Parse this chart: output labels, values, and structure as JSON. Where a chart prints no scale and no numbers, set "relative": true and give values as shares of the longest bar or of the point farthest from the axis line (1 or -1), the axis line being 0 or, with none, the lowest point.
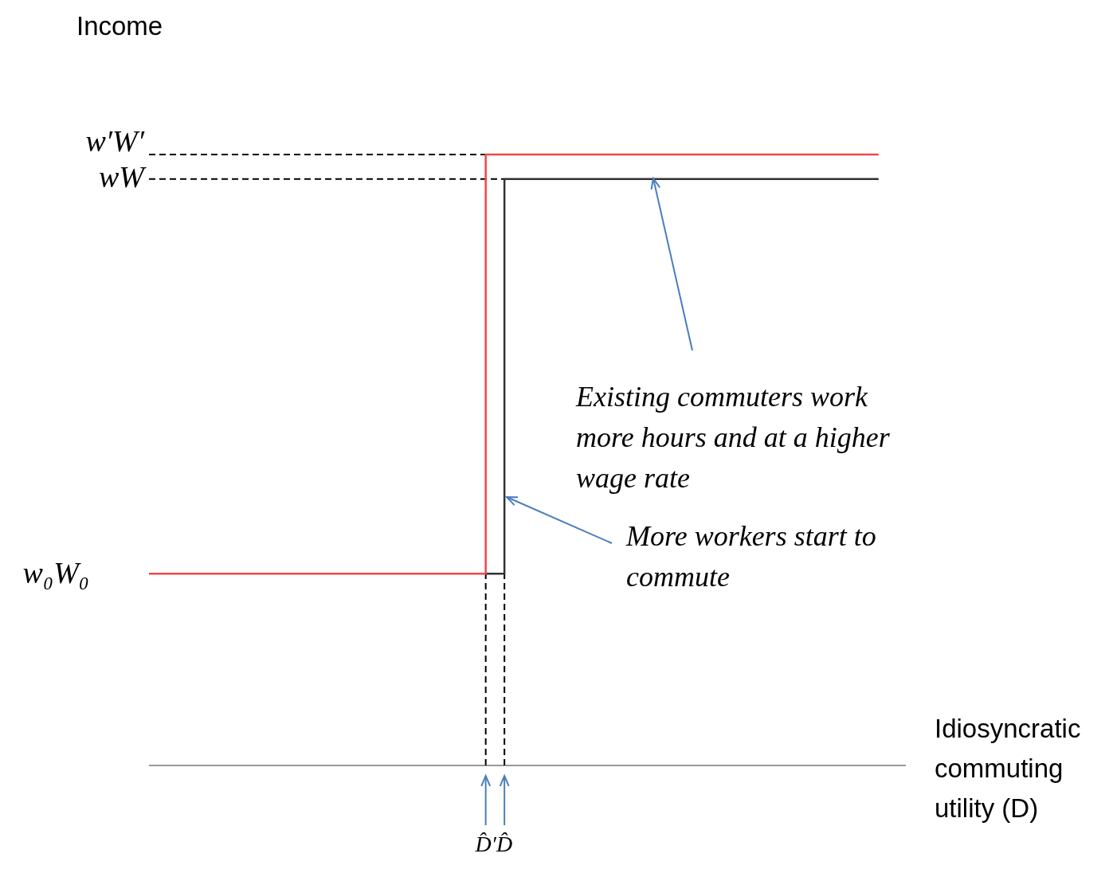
{
  "chart_data": {
    "type": "step",
    "relative": true,
    "ylabel": "Income",
    "xlabel": "Idiosyncratic commuting utility (D)",
    "categories": [
      null,
      null,
      null,
      null,
      null,
      null,
      null,
      null,
      null,
      null,
      null,
      null,
      null,
      null,
      null,
      null,
      null,
      null,
      "D̂′",
      "D̂",
      null,
      null,
      null,
      null,
      null,
      null,
      null,
      null,
      null,
      null,
      null,
      null,
      null,
      null,
      null,
      null,
      null,
      null,
      null,
      null
    ],
    "series": [
      {
        "color": "#f04848",
        "values": [
          0.314,
          0.314,
          0.314,
          0.314,
          0.314,
          0.314,
          0.314,
          0.314,
          0.314,
          0.314,
          0.314,
          0.314,
          0.314,
          0.314,
          0.314,
          0.314,
          0.314,
          0.314,
          1,
          1,
          1,
          1,
          1,
          1,
          1,
          1,
          1,
          1,
          1,
          1,
          1,
          1,
          1,
          1,
          1,
          1,
          1,
          1,
          1,
          1
        ]
      },
      {
        "color": "#333333",
        "values": [
          null,
          null,
          null,
          null,
          null,
          null,
          null,
          null,
          null,
          null,
          null,
          null,
          null,
          null,
          null,
          null,
          null,
          null,
          0.314,
          0.96,
          0.96,
          0.96,
          0.96,
          0.96,
          0.96,
          0.96,
          0.96,
          0.96,
          0.96,
          0.96,
          0.96,
          0.96,
          0.96,
          0.96,
          0.96,
          0.96,
          0.96,
          0.96,
          0.96,
          0.96
        ]
      }
    ],
    "ref_lines": [
      {
        "axis": "y",
        "value": 1,
        "label": "w′W′",
        "line_style": "dashed"
      },
      {
        "axis": "y",
        "value": 0.96,
        "label": "wW",
        "line_style": "dashed"
      },
      {
        "axis": "x",
        "value": "D̂′",
        "line_style": "dashed"
      },
      {
        "axis": "x",
        "value": "D̂",
        "line_style": "dashed"
      }
    ],
    "annotations": [
      "w₀W₀",
      "Existing commuters work more hours and at a higher wage rate",
      "More workers start to commute"
    ],
    "legend": false,
    "grid": false,
    "marker": "none"
  }
}
